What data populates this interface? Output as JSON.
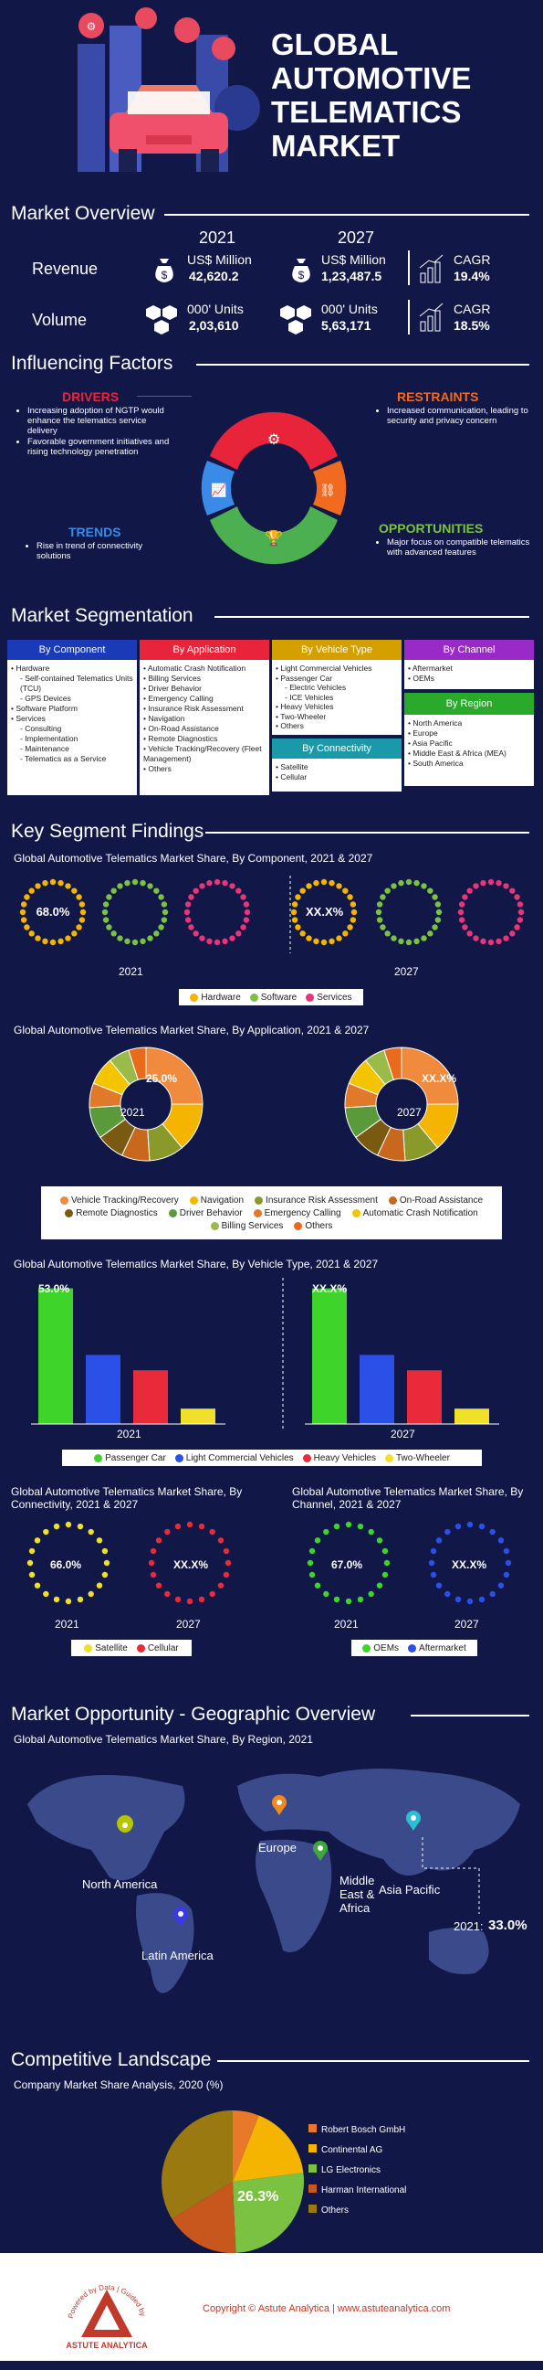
{
  "header": {
    "title_lines": [
      "GLOBAL",
      "AUTOMOTIVE",
      "TELEMATICS",
      "MARKET"
    ]
  },
  "overview": {
    "title": "Market Overview",
    "years": [
      "2021",
      "2027"
    ],
    "revenue": {
      "label": "Revenue",
      "unit_2021": "US$ Million",
      "val_2021": "42,620.2",
      "unit_2027": "US$ Million",
      "val_2027": "1,23,487.5",
      "cagr_label": "CAGR",
      "cagr": "19.4%"
    },
    "volume": {
      "label": "Volume",
      "unit_2021": "000' Units",
      "val_2021": "2,03,610",
      "unit_2027": "000' Units",
      "val_2027": "5,63,171",
      "cagr_label": "CAGR",
      "cagr": "18.5%"
    }
  },
  "factors": {
    "title": "Influencing Factors",
    "drivers": {
      "title": "DRIVERS",
      "items": [
        "Increasing adoption of NGTP would enhance the telematics service delivery",
        "Favorable government initiatives and rising technology penetration"
      ]
    },
    "restraints": {
      "title": "RESTRAINTS",
      "items": [
        "Increased communication, leading to security and privacy concern"
      ]
    },
    "trends": {
      "title": "TRENDS",
      "items": [
        "Rise in trend of connectivity solutions"
      ]
    },
    "opportunities": {
      "title": "OPPORTUNITIES",
      "items": [
        "Major focus on compatible telematics with advanced features"
      ]
    }
  },
  "segmentation": {
    "title": "Market Segmentation",
    "component": {
      "title": "By Component",
      "items": [
        [
          "Hardware",
          0
        ],
        [
          "Self-contained Telematics Units (TCU)",
          1
        ],
        [
          "GPS Devices",
          1
        ],
        [
          "Software Platform",
          0
        ],
        [
          "Services",
          0
        ],
        [
          "Consulting",
          1
        ],
        [
          "Implementation",
          1
        ],
        [
          "Maintenance",
          1
        ],
        [
          "Telematics as a Service",
          1
        ]
      ]
    },
    "application": {
      "title": "By Application",
      "items": [
        "Automatic Crash Notification",
        "Billing Services",
        "Driver Behavior",
        "Emergency Calling",
        "Insurance Risk Assessment",
        "Navigation",
        "On-Road Assistance",
        "Remote Diagnostics",
        "Vehicle Tracking/Recovery (Fleet Management)",
        "Others"
      ]
    },
    "vehicle": {
      "title": "By Vehicle Type",
      "items": [
        [
          "Light Commercial Vehicles",
          0
        ],
        [
          "Passenger Car",
          0
        ],
        [
          "Electric Vehicles",
          1
        ],
        [
          "ICE Vehicles",
          1
        ],
        [
          "Heavy Vehicles",
          0
        ],
        [
          "Two-Wheeler",
          0
        ],
        [
          "Others",
          0
        ]
      ]
    },
    "connectivity": {
      "title": "By Connectivity",
      "items": [
        "Satellite",
        "Cellular"
      ]
    },
    "channel": {
      "title": "By Channel",
      "items": [
        "Aftermarket",
        "OEMs"
      ]
    },
    "region": {
      "title": "By Region",
      "items": [
        "North America",
        "Europe",
        "Asia Pacific",
        "Middle East & Africa (MEA)",
        "South America"
      ]
    }
  },
  "findings": {
    "title": "Key Segment Findings",
    "component": {
      "title": "Global Automotive Telematics Market Share, By Component, 2021 & 2027",
      "val_2021": "68.0%",
      "val_2027": "XX.X%",
      "year_2021": "2021",
      "year_2027": "2027",
      "legend": [
        "Hardware",
        "Software",
        "Services"
      ],
      "colors": [
        "#f5b400",
        "#7cc242",
        "#e8357a"
      ]
    },
    "application": {
      "title": "Global Automotive Telematics Market Share, By Application, 2021 & 2027",
      "val_2021": "25.0%",
      "val_2027": "XX.X%",
      "year_2021": "2021",
      "year_2027": "2027",
      "legend": [
        "Vehicle Tracking/Recovery",
        "Navigation",
        "Insurance Risk Assessment",
        "On-Road Assistance",
        "Remote Diagnostics",
        "Driver Behavior",
        "Emergency Calling",
        "Automatic Crash Notification",
        "Billing Services",
        "Others"
      ],
      "colors": [
        "#f08a3c",
        "#f5b400",
        "#8a9a2a",
        "#c8681e",
        "#7a5a10",
        "#5a9a3a",
        "#e07a2a",
        "#f5c400",
        "#9aba4a",
        "#e86a1a"
      ]
    },
    "vehicle": {
      "title": "Global Automotive Telematics Market Share, By Vehicle Type, 2021 & 2027",
      "val_2021": "53.0%",
      "val_2027": "XX.X%",
      "year_2021": "2021",
      "year_2027": "2027",
      "legend": [
        "Passenger Car",
        "Light Commercial Vehicles",
        "Heavy Vehicles",
        "Two-Wheeler"
      ],
      "colors": [
        "#3ed42a",
        "#2a50e8",
        "#e82a3a",
        "#f0e02a"
      ]
    },
    "connectivity": {
      "title": "Global Automotive Telematics Market Share, By Connectivity, 2021 & 2027",
      "val_2021": "66.0%",
      "val_2027": "XX.X%",
      "year_2021": "2021",
      "year_2027": "2027",
      "legend": [
        "Satellite",
        "Cellular"
      ],
      "colors": [
        "#f0e02a",
        "#e82a3a"
      ]
    },
    "channel": {
      "title": "Global Automotive Telematics Market Share, By Channel, 2021 & 2027",
      "val_2021": "67.0%",
      "val_2027": "XX.X%",
      "year_2021": "2021",
      "year_2027": "2027",
      "legend": [
        "OEMs",
        "Aftermarket"
      ],
      "colors": [
        "#3ed42a",
        "#2a50e8"
      ]
    }
  },
  "geo": {
    "title": "Market Opportunity - Geographic Overview",
    "subtitle": "Global Automotive Telematics Market Share, By Region, 2021",
    "regions": [
      "North America",
      "Europe",
      "Middle East & Africa",
      "Asia Pacific",
      "Latin America"
    ],
    "callout_year": "2021:",
    "callout_val": "33.0%"
  },
  "competitive": {
    "title": "Competitive Landscape",
    "subtitle": "Company Market Share Analysis, 2020 (%)",
    "highlight": "26.3%",
    "legend": [
      "Robert Bosch GmbH",
      "Continental AG",
      "LG Electronics",
      "Harman International",
      "Others"
    ],
    "colors": [
      "#e8782a",
      "#f5b400",
      "#7cc242",
      "#c8571e",
      "#9a7a10"
    ]
  },
  "footer": {
    "copyright": "Copyright © Astute Analytica  |  www.astuteanalytica.com",
    "logo_text": "ASTUTE ANALYTICA",
    "logo_arc": "Powered by Data | Guided by Intelligence"
  },
  "chart_data": [
    {
      "type": "pie",
      "title": "Global Automotive Telematics Market Share, By Application, 2021 & 2027",
      "categories": [
        "Vehicle Tracking/Recovery",
        "Navigation",
        "Insurance Risk Assessment",
        "On-Road Assistance",
        "Remote Diagnostics",
        "Driver Behavior",
        "Emergency Calling",
        "Automatic Crash Notification",
        "Billing Services",
        "Others"
      ],
      "values": [
        25,
        14,
        10,
        8,
        8,
        9,
        7,
        8,
        6,
        5
      ]
    },
    {
      "type": "bar",
      "title": "Global Automotive Telematics Market Share, By Vehicle Type, 2021 & 2027",
      "categories": [
        "Passenger Car",
        "Light Commercial Vehicles",
        "Heavy Vehicles",
        "Two-Wheeler"
      ],
      "series": [
        {
          "name": "2021",
          "values": [
            53,
            27,
            21,
            6
          ]
        },
        {
          "name": "2027",
          "values": [
            53,
            27,
            21,
            6
          ]
        }
      ]
    },
    {
      "type": "pie",
      "title": "Company Market Share Analysis, 2020 (%)",
      "categories": [
        "Robert Bosch GmbH",
        "Continental AG",
        "LG Electronics",
        "Harman International",
        "Others"
      ],
      "values": [
        6,
        17,
        26.3,
        17,
        33.7
      ]
    }
  ]
}
